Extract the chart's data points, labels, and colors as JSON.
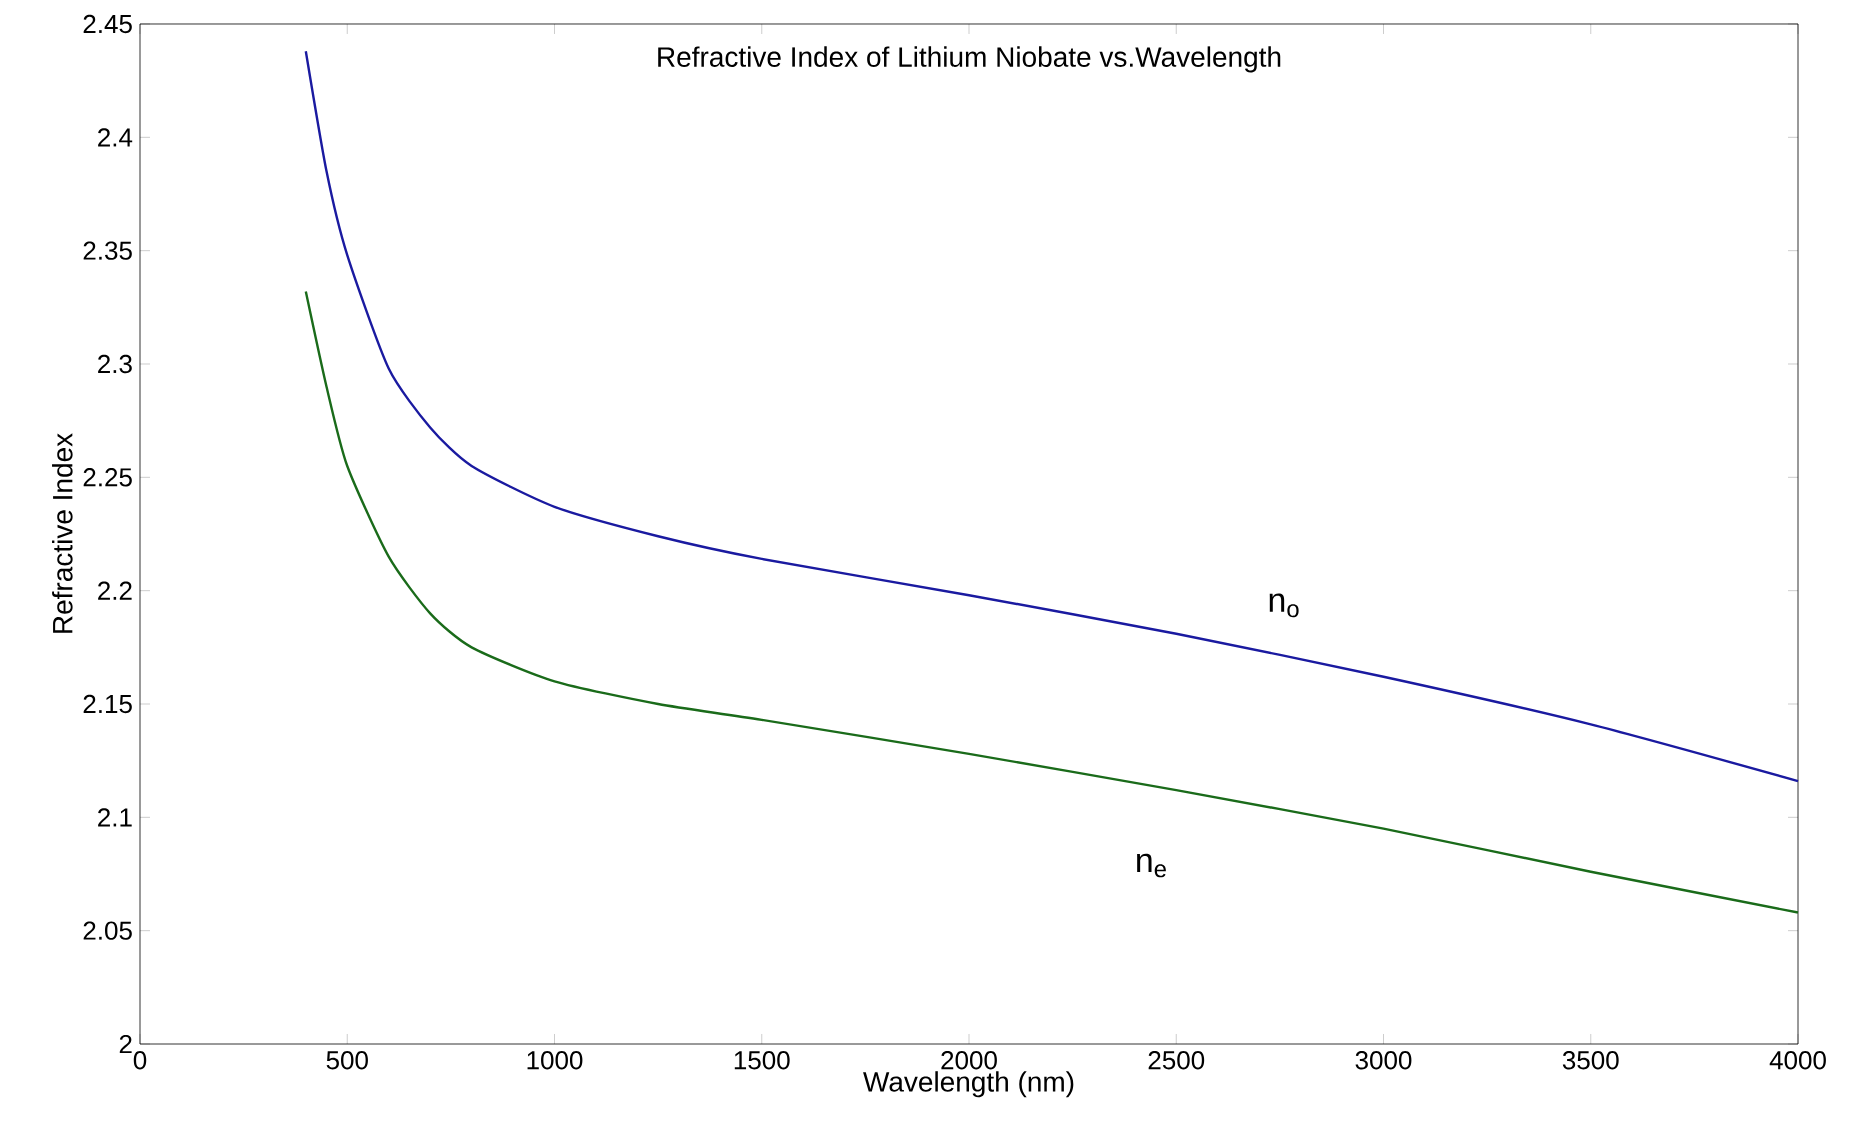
{
  "chart_data": {
    "type": "line",
    "title": "Refractive Index of Lithium Niobate vs.Wavelength",
    "xlabel": "Wavelength (nm)",
    "ylabel": "Refractive Index",
    "x": [
      400,
      450,
      500,
      600,
      700,
      800,
      1000,
      1250,
      1500,
      2000,
      2500,
      3000,
      3500,
      4000
    ],
    "series": [
      {
        "color": "#1a1aa0",
        "values": [
          2.438,
          2.385,
          2.348,
          2.298,
          2.272,
          2.255,
          2.237,
          2.224,
          2.214,
          2.198,
          2.181,
          2.162,
          2.141,
          2.116
        ]
      },
      {
        "color": "#1a6b1a",
        "values": [
          2.332,
          2.29,
          2.255,
          2.215,
          2.19,
          2.175,
          2.16,
          2.15,
          2.143,
          2.128,
          2.112,
          2.095,
          2.076,
          2.058
        ]
      }
    ],
    "annotations": [
      "n$_{o}$",
      "n$_{e}$"
    ],
    "xlim": [
      0,
      4000
    ],
    "xticks": [
      0,
      500,
      1000,
      1500,
      2000,
      2500,
      3000,
      3500,
      4000
    ],
    "ylim": [
      2,
      2.45
    ],
    "yticks": [
      2,
      2.05,
      2.1,
      2.15,
      2.2,
      2.25,
      2.3,
      2.35,
      2.4,
      2.45
    ],
    "grid": false,
    "marker": "none",
    "line_style": "solid"
  }
}
